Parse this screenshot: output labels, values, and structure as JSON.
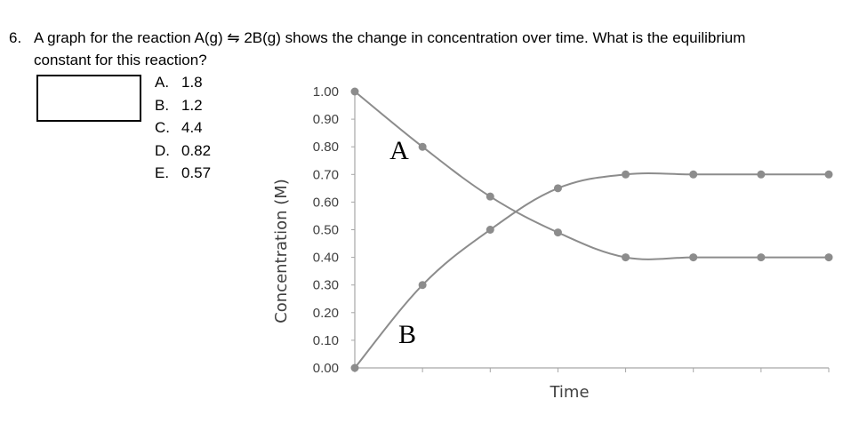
{
  "question": {
    "number": "6.",
    "line1": "A graph for the reaction A(g) ⇋ 2B(g) shows the change in concentration over time. What is the equilibrium",
    "line2": "constant for this reaction?"
  },
  "choices": [
    {
      "letter": "A.",
      "text": "1.8"
    },
    {
      "letter": "B.",
      "text": "1.2"
    },
    {
      "letter": "C.",
      "text": "4.4"
    },
    {
      "letter": "D.",
      "text": "0.82"
    },
    {
      "letter": "E.",
      "text": "0.57"
    }
  ],
  "chart_data": {
    "type": "line",
    "xlabel": "Time",
    "ylabel": "Concentration (M)",
    "ylim": [
      0,
      1
    ],
    "yticks": [
      "0.00",
      "0.10",
      "0.20",
      "0.30",
      "0.40",
      "0.50",
      "0.60",
      "0.70",
      "0.80",
      "0.90",
      "1.00"
    ],
    "x": [
      0,
      1,
      2,
      3,
      4,
      5,
      6,
      7
    ],
    "grid": false,
    "line_color": "#8c8c8c",
    "series": [
      {
        "name": "A",
        "values": [
          1.0,
          0.8,
          0.62,
          0.49,
          0.4,
          0.4,
          0.4,
          0.4
        ]
      },
      {
        "name": "B",
        "values": [
          0.0,
          0.3,
          0.5,
          0.65,
          0.7,
          0.7,
          0.7,
          0.7
        ]
      }
    ]
  }
}
